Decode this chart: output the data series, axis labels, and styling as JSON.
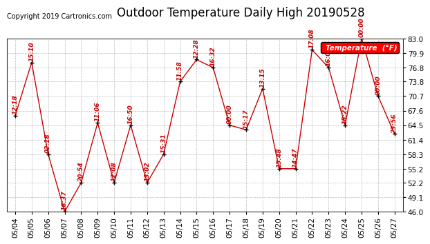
{
  "title": "Outdoor Temperature Daily High 20190528",
  "copyright": "Copyright 2019 Cartronics.com",
  "legend_label": "Temperature  (°F)",
  "dates": [
    "05/04",
    "05/05",
    "05/06",
    "05/07",
    "05/08",
    "05/09",
    "05/10",
    "05/11",
    "05/12",
    "05/13",
    "05/14",
    "05/15",
    "05/16",
    "05/17",
    "05/18",
    "05/19",
    "05/20",
    "05/21",
    "05/22",
    "05/23",
    "05/24",
    "05/25",
    "05/26",
    "05/27"
  ],
  "temps": [
    66.5,
    77.9,
    58.3,
    46.0,
    52.2,
    65.0,
    52.2,
    64.5,
    52.2,
    58.3,
    73.8,
    78.5,
    76.8,
    64.5,
    63.5,
    72.3,
    55.2,
    55.2,
    80.6,
    76.8,
    64.5,
    83.0,
    70.7,
    62.6
  ],
  "time_labels": [
    "12:18",
    "15:10",
    "02:18",
    "16:37",
    "20:54",
    "11:06",
    "12:08",
    "16:50",
    "13:02",
    "15:31",
    "11:58",
    "12:28",
    "16:32",
    "00:00",
    "15:17",
    "13:15",
    "15:48",
    "14:47",
    "17:08",
    "16:02",
    "18:22",
    "00:00",
    "00:00",
    "23:56"
  ],
  "line_color": "#cc0000",
  "marker_color": "#000000",
  "background_color": "#ffffff",
  "plot_bg_color": "#ffffff",
  "grid_color": "#bbbbbb",
  "ylim": [
    46.0,
    83.0
  ],
  "yticks": [
    46.0,
    49.1,
    52.2,
    55.2,
    58.3,
    61.4,
    64.5,
    67.6,
    70.7,
    73.8,
    76.8,
    79.9,
    83.0
  ],
  "title_fontsize": 12,
  "label_fontsize": 6.5,
  "tick_fontsize": 7.5,
  "copyright_fontsize": 7
}
